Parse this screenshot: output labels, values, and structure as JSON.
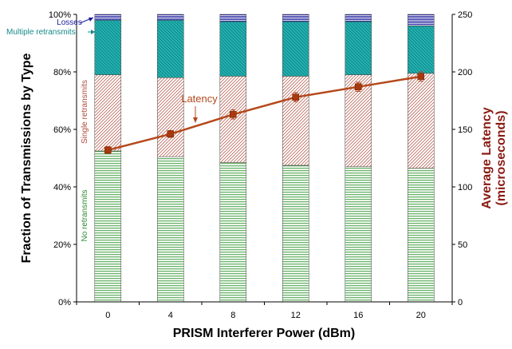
{
  "chart_data": {
    "type": "bar",
    "xlabel": "PRISM Interferer Power (dBm)",
    "ylabel": "Fraction of Transmissions by Type",
    "y2label_lines": [
      "Average Latency",
      "(microseconds)"
    ],
    "categories": [
      "0",
      "4",
      "8",
      "12",
      "16",
      "20"
    ],
    "ylim": [
      0,
      100
    ],
    "yticks": [
      "0%",
      "20%",
      "40%",
      "60%",
      "80%",
      "100%"
    ],
    "y2lim": [
      0,
      250
    ],
    "y2ticks": [
      "0",
      "50",
      "100",
      "150",
      "200",
      "250"
    ],
    "stacked": true,
    "series": [
      {
        "name": "No retransmits",
        "values": [
          52.5,
          50.5,
          48.5,
          47.5,
          47.0,
          46.5
        ],
        "color": "#3a9a3a"
      },
      {
        "name": "Single retransmits",
        "values": [
          26.5,
          27.5,
          30.0,
          31.0,
          32.0,
          33.0
        ],
        "color": "#b04a3a"
      },
      {
        "name": "Multiple retransmits",
        "values": [
          19.0,
          20.0,
          19.0,
          19.0,
          18.5,
          16.5
        ],
        "color": "#1aa3a3"
      },
      {
        "name": "Losses",
        "values": [
          2.0,
          2.0,
          2.5,
          2.5,
          2.5,
          4.0
        ],
        "color": "#1f1f9e"
      }
    ],
    "line_series": {
      "name": "Latency",
      "axis": "y2",
      "values": [
        132,
        146,
        163,
        178,
        187,
        196
      ],
      "errors": [
        3,
        3,
        4,
        4,
        4,
        4
      ],
      "color": "#b5481a"
    },
    "annotations": {
      "losses": "Losses",
      "multiple": "Multiple retransmits",
      "latency": "Latency",
      "single": "Single retransmits",
      "none": "No retransmits"
    }
  }
}
